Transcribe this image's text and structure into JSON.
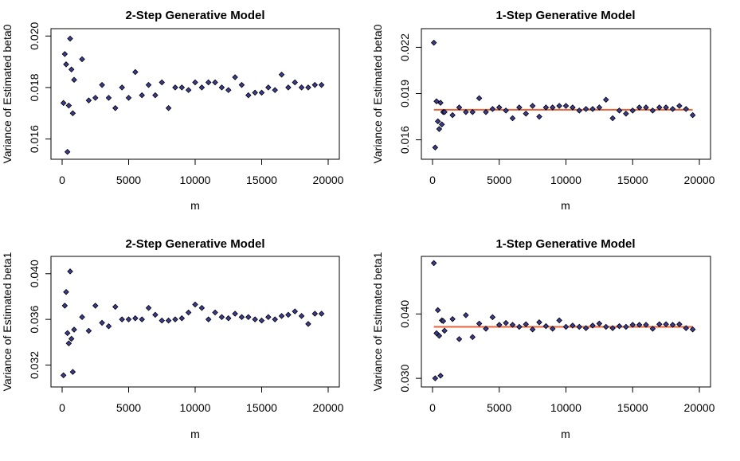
{
  "chart_data": [
    {
      "type": "scatter",
      "title": "2-Step Generative Model",
      "xlabel": "m",
      "ylabel": "Variance of Estimated beta0",
      "xlim": [
        0,
        20000
      ],
      "ylim": [
        0.0154,
        0.0201
      ],
      "xticks": [
        "0",
        "5000",
        "10000",
        "15000",
        "20000"
      ],
      "yticks": [
        "0.016",
        "0.018",
        "0.020"
      ],
      "marker_color": "#3b3b8f",
      "x": [
        100,
        200,
        300,
        400,
        500,
        600,
        700,
        800,
        900,
        1500,
        2000,
        2500,
        3000,
        3500,
        4000,
        4500,
        5000,
        5500,
        6000,
        6500,
        7000,
        7500,
        8000,
        8500,
        9000,
        9500,
        10000,
        10500,
        11000,
        11500,
        12000,
        12500,
        13000,
        13500,
        14000,
        14500,
        15000,
        15500,
        16000,
        16500,
        17000,
        17500,
        18000,
        18500,
        19000,
        19500
      ],
      "y": [
        0.0174,
        0.0193,
        0.0189,
        0.0155,
        0.0173,
        0.0199,
        0.0187,
        0.017,
        0.0183,
        0.0191,
        0.0175,
        0.0176,
        0.0181,
        0.0176,
        0.0172,
        0.018,
        0.0176,
        0.0186,
        0.0177,
        0.0181,
        0.0177,
        0.0182,
        0.0172,
        0.018,
        0.018,
        0.0179,
        0.0182,
        0.018,
        0.0182,
        0.0182,
        0.018,
        0.0179,
        0.0184,
        0.0181,
        0.0177,
        0.0178,
        0.0178,
        0.018,
        0.0179,
        0.0185,
        0.018,
        0.0182,
        0.018,
        0.018,
        0.0181,
        0.0181
      ]
    },
    {
      "type": "scatter",
      "title": "1-Step Generative Model",
      "xlabel": "m",
      "ylabel": "Variance of Estimated beta0",
      "xlim": [
        0,
        20000
      ],
      "ylim": [
        0.01505,
        0.0229
      ],
      "xticks": [
        "0",
        "5000",
        "10000",
        "15000",
        "20000"
      ],
      "yticks": [
        "0.016",
        "0.019",
        "0.022"
      ],
      "reference_line_y": 0.01795,
      "line_color": "#e8623a",
      "marker_color": "#3b3b8f",
      "x": [
        100,
        200,
        300,
        400,
        500,
        600,
        700,
        800,
        900,
        1500,
        2000,
        2500,
        3000,
        3500,
        4000,
        4500,
        5000,
        5500,
        6000,
        6500,
        7000,
        7500,
        8000,
        8500,
        9000,
        9500,
        10000,
        10500,
        11000,
        11500,
        12000,
        12500,
        13000,
        13500,
        14000,
        14500,
        15000,
        15500,
        16000,
        16500,
        17000,
        17500,
        18000,
        18500,
        19000,
        19500
      ],
      "y": [
        0.0223,
        0.0155,
        0.0185,
        0.0172,
        0.0167,
        0.0184,
        0.017,
        0.0178,
        0.0178,
        0.0176,
        0.0181,
        0.0178,
        0.0178,
        0.0187,
        0.0178,
        0.018,
        0.0181,
        0.0179,
        0.0174,
        0.0181,
        0.0177,
        0.0182,
        0.0175,
        0.0181,
        0.0181,
        0.0182,
        0.0182,
        0.0181,
        0.0179,
        0.018,
        0.018,
        0.0181,
        0.0186,
        0.0174,
        0.0179,
        0.0177,
        0.0179,
        0.0181,
        0.0181,
        0.0179,
        0.0181,
        0.0181,
        0.018,
        0.0182,
        0.018,
        0.0176
      ]
    },
    {
      "type": "scatter",
      "title": "2-Step Generative Model",
      "xlabel": "m",
      "ylabel": "Variance of Estimated beta1",
      "xlim": [
        0,
        20000
      ],
      "ylim": [
        0.0305,
        0.0411
      ],
      "xticks": [
        "0",
        "5000",
        "10000",
        "15000",
        "20000"
      ],
      "yticks": [
        "0.032",
        "0.036",
        "0.040"
      ],
      "marker_color": "#3b3b8f",
      "x": [
        100,
        200,
        300,
        400,
        500,
        600,
        700,
        800,
        900,
        1500,
        2000,
        2500,
        3000,
        3500,
        4000,
        4500,
        5000,
        5500,
        6000,
        6500,
        7000,
        7500,
        8000,
        8500,
        9000,
        9500,
        10000,
        10500,
        11000,
        11500,
        12000,
        12500,
        13000,
        13500,
        14000,
        14500,
        15000,
        15500,
        16000,
        16500,
        17000,
        17500,
        18000,
        18500,
        19000,
        19500
      ],
      "y": [
        0.0311,
        0.0372,
        0.0384,
        0.0348,
        0.0339,
        0.0402,
        0.0343,
        0.0314,
        0.0351,
        0.0362,
        0.035,
        0.0372,
        0.0357,
        0.0354,
        0.0371,
        0.036,
        0.036,
        0.0361,
        0.036,
        0.037,
        0.0364,
        0.0359,
        0.0359,
        0.036,
        0.0361,
        0.0366,
        0.0373,
        0.037,
        0.036,
        0.0366,
        0.0362,
        0.0361,
        0.0365,
        0.0362,
        0.0362,
        0.036,
        0.0359,
        0.0362,
        0.036,
        0.0363,
        0.0364,
        0.0367,
        0.0363,
        0.0356,
        0.0365,
        0.0365
      ]
    },
    {
      "type": "scatter",
      "title": "1-Step Generative Model",
      "xlabel": "m",
      "ylabel": "Variance of Estimated beta1",
      "xlim": [
        0,
        20000
      ],
      "ylim": [
        0.0294,
        0.0482
      ],
      "xticks": [
        "0",
        "5000",
        "10000",
        "15000",
        "20000"
      ],
      "yticks": [
        "0.030",
        "0.040"
      ],
      "reference_line_y": 0.038,
      "line_color": "#e8623a",
      "marker_color": "#3b3b8f",
      "x": [
        100,
        200,
        300,
        400,
        500,
        600,
        700,
        800,
        900,
        1500,
        2000,
        2500,
        3000,
        3500,
        4000,
        4500,
        5000,
        5500,
        6000,
        6500,
        7000,
        7500,
        8000,
        8500,
        9000,
        9500,
        10000,
        10500,
        11000,
        11500,
        12000,
        12500,
        13000,
        13500,
        14000,
        14500,
        15000,
        15500,
        16000,
        16500,
        17000,
        17500,
        18000,
        18500,
        19000,
        19500
      ],
      "y": [
        0.0479,
        0.03,
        0.037,
        0.0406,
        0.0366,
        0.0304,
        0.039,
        0.0389,
        0.0374,
        0.0392,
        0.0361,
        0.0398,
        0.0364,
        0.0385,
        0.0377,
        0.0395,
        0.0383,
        0.0386,
        0.0383,
        0.038,
        0.0384,
        0.0376,
        0.0387,
        0.0381,
        0.0377,
        0.039,
        0.038,
        0.0382,
        0.038,
        0.0378,
        0.0382,
        0.0385,
        0.038,
        0.0378,
        0.0381,
        0.038,
        0.0383,
        0.0383,
        0.0383,
        0.0377,
        0.0384,
        0.0384,
        0.0383,
        0.0384,
        0.0378,
        0.0376
      ]
    }
  ]
}
